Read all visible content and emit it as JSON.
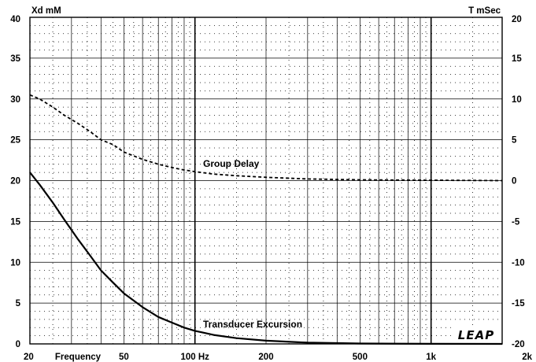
{
  "chart_data": {
    "type": "line",
    "x_scale": "log",
    "xlim": [
      20,
      2000
    ],
    "ylim": [
      0,
      40
    ],
    "y2lim": [
      -20,
      20
    ],
    "grid": true,
    "ylabel": "Xd mM",
    "y2label": "T mSec",
    "xlabel": "Frequency",
    "x_tick_labels": [
      {
        "v": 20,
        "t": "20"
      },
      {
        "v": 50,
        "t": "50"
      },
      {
        "v": 100,
        "t": "100 Hz"
      },
      {
        "v": 200,
        "t": "200"
      },
      {
        "v": 500,
        "t": "500"
      },
      {
        "v": 1000,
        "t": "1k"
      },
      {
        "v": 2000,
        "t": "2k"
      }
    ],
    "y_ticks": [
      "0",
      "5",
      "10",
      "15",
      "20",
      "25",
      "30",
      "35",
      "40"
    ],
    "y2_ticks": [
      "-20",
      "-15",
      "-10",
      "-5",
      "0",
      "5",
      "10",
      "15",
      "20"
    ],
    "series": [
      {
        "name": "Group Delay",
        "axis": "right",
        "style": "dashed",
        "x": [
          20,
          22,
          25,
          28,
          32,
          36,
          40,
          45,
          50,
          60,
          70,
          80,
          90,
          100,
          120,
          150,
          200,
          300,
          500,
          1000,
          2000
        ],
        "y": [
          10.5,
          10.0,
          9.0,
          8.0,
          7.0,
          6.0,
          5.0,
          4.4,
          3.5,
          2.6,
          2.0,
          1.6,
          1.3,
          1.1,
          0.8,
          0.6,
          0.4,
          0.2,
          0.1,
          0.05,
          0.0
        ]
      },
      {
        "name": "Transducer Excursion",
        "axis": "left",
        "style": "solid",
        "x": [
          20,
          22,
          25,
          28,
          32,
          36,
          40,
          45,
          50,
          60,
          70,
          80,
          90,
          100,
          120,
          150,
          200,
          300,
          500,
          1000,
          2000
        ],
        "y": [
          21.0,
          19.5,
          17.3,
          15.2,
          12.8,
          10.8,
          9.0,
          7.5,
          6.2,
          4.5,
          3.3,
          2.6,
          2.0,
          1.6,
          1.1,
          0.7,
          0.4,
          0.15,
          0.05,
          0.01,
          0.0
        ]
      }
    ],
    "annotations": [
      {
        "text": "Group Delay",
        "series": "Group Delay"
      },
      {
        "text": "Transducer Excursion",
        "series": "Transducer Excursion"
      }
    ],
    "logo": "LEAP"
  }
}
